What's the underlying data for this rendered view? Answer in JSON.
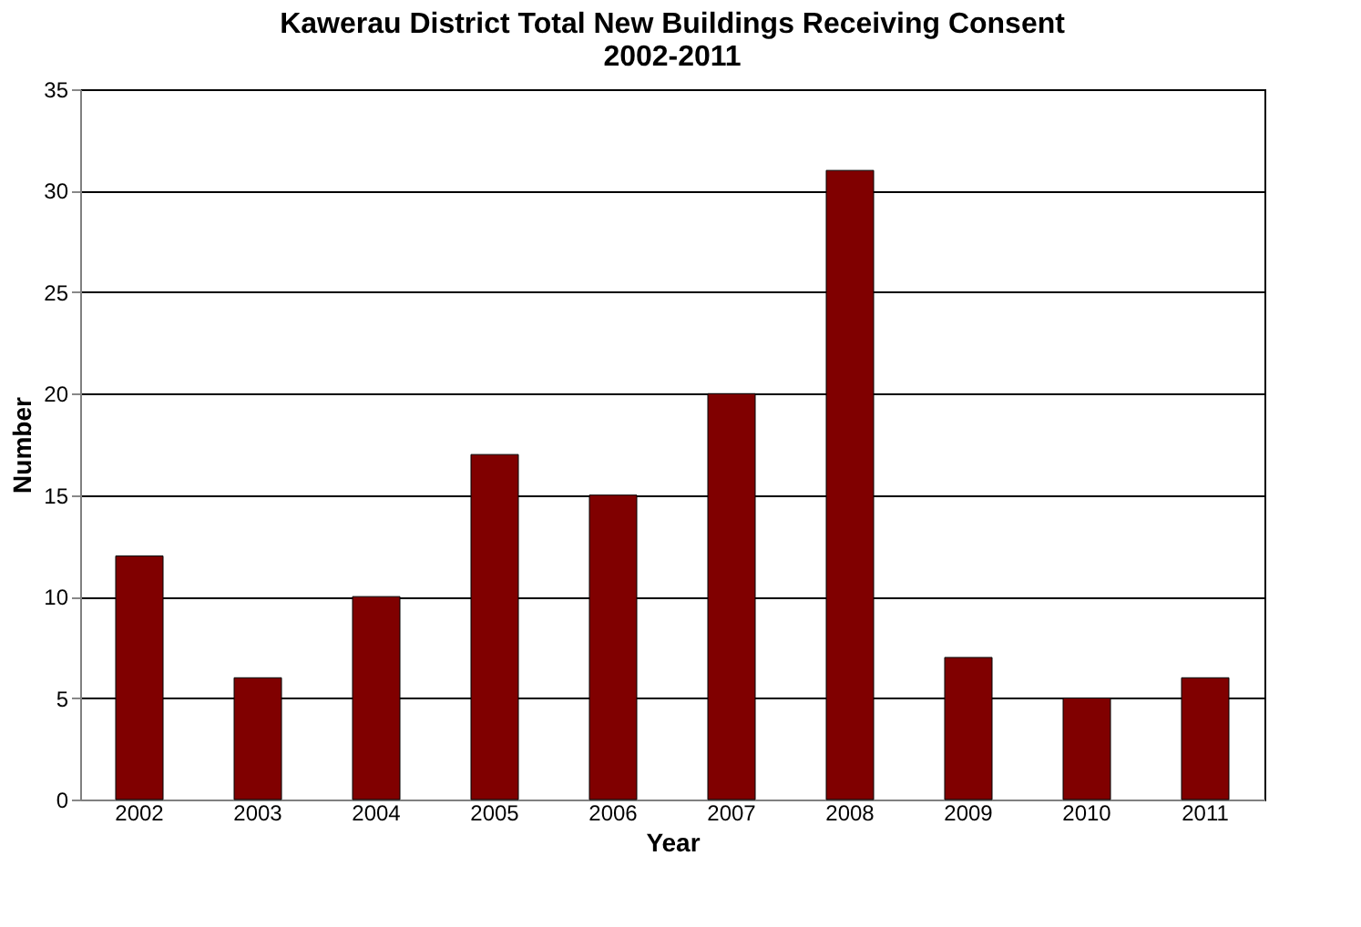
{
  "chart_data": {
    "type": "bar",
    "title": "Kawerau District Total New Buildings Receiving Consent\n2002-2011",
    "xlabel": "Year",
    "ylabel": "Number",
    "categories": [
      "2002",
      "2003",
      "2004",
      "2005",
      "2006",
      "2007",
      "2008",
      "2009",
      "2010",
      "2011"
    ],
    "values": [
      12,
      6,
      10,
      17,
      15,
      20,
      31,
      7,
      5,
      6
    ],
    "color": "#800000",
    "ylim": [
      0,
      35
    ],
    "yticks": [
      0,
      5,
      10,
      15,
      20,
      25,
      30,
      35
    ],
    "grid": "y"
  }
}
